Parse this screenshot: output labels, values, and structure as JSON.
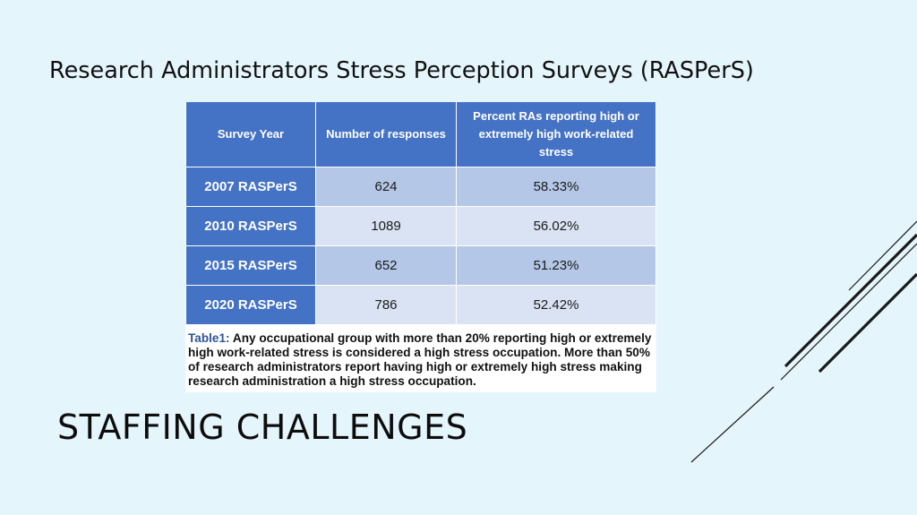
{
  "slide": {
    "subtitle": "Research Administrators Stress Perception Surveys (RASPerS)",
    "title": "STAFFING CHALLENGES"
  },
  "table": {
    "headers": [
      "Survey Year",
      "Number of responses",
      "Percent RAs reporting high or extremely high work-related stress"
    ],
    "rows": [
      {
        "year": "2007 RASPerS",
        "responses": "624",
        "percent": "58.33%"
      },
      {
        "year": "2010 RASPerS",
        "responses": "1089",
        "percent": "56.02%"
      },
      {
        "year": "2015 RASPerS",
        "responses": "652",
        "percent": "51.23%"
      },
      {
        "year": "2020 RASPerS",
        "responses": "786",
        "percent": "52.42%"
      }
    ],
    "caption_label": "Table1:",
    "caption_text": "Any occupational group with more than 20% reporting high or extremely high work-related stress is considered a high stress occupation. More than 50% of research administrators report having high or extremely high stress making research administration a high stress occupation."
  },
  "colors": {
    "background": "#e4f5fb",
    "header_blue": "#4472c4",
    "row_light": "#b4c7e7",
    "row_lighter": "#dae3f3"
  }
}
